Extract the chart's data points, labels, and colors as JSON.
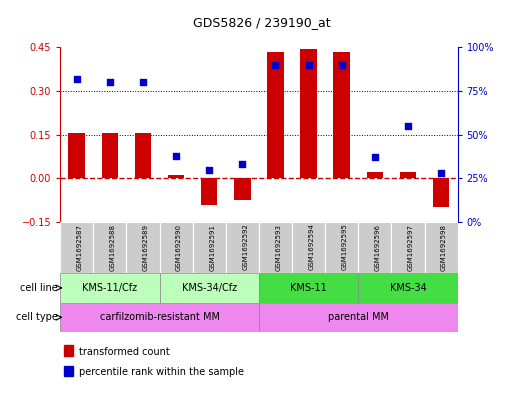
{
  "title": "GDS5826 / 239190_at",
  "samples": [
    "GSM1692587",
    "GSM1692588",
    "GSM1692589",
    "GSM1692590",
    "GSM1692591",
    "GSM1692592",
    "GSM1692593",
    "GSM1692594",
    "GSM1692595",
    "GSM1692596",
    "GSM1692597",
    "GSM1692598"
  ],
  "transformed_count": [
    0.155,
    0.155,
    0.155,
    0.01,
    -0.09,
    -0.075,
    0.435,
    0.445,
    0.435,
    0.02,
    0.02,
    -0.1
  ],
  "percentile_rank": [
    82,
    80,
    80,
    38,
    30,
    33,
    90,
    90,
    90,
    37,
    55,
    28
  ],
  "ylim_left": [
    -0.15,
    0.45
  ],
  "ylim_right": [
    0,
    100
  ],
  "yticks_left": [
    -0.15,
    0.0,
    0.15,
    0.3,
    0.45
  ],
  "yticks_right": [
    0,
    25,
    50,
    75,
    100
  ],
  "bar_color": "#cc0000",
  "dot_color": "#0000cc",
  "zero_line_color": "#cc0000",
  "cell_line_groups": [
    {
      "label": "KMS-11/Cfz",
      "start": 0,
      "end": 3,
      "color": "#bbffbb"
    },
    {
      "label": "KMS-34/Cfz",
      "start": 3,
      "end": 6,
      "color": "#bbffbb"
    },
    {
      "label": "KMS-11",
      "start": 6,
      "end": 9,
      "color": "#55ee55"
    },
    {
      "label": "KMS-34",
      "start": 9,
      "end": 12,
      "color": "#55ee55"
    }
  ],
  "cell_type_groups": [
    {
      "label": "carfilzomib-resistant MM",
      "start": 0,
      "end": 6,
      "color": "#ee88ee"
    },
    {
      "label": "parental MM",
      "start": 6,
      "end": 12,
      "color": "#ee88ee"
    }
  ],
  "legend_items": [
    {
      "label": "transformed count",
      "color": "#cc0000"
    },
    {
      "label": "percentile rank within the sample",
      "color": "#0000cc"
    }
  ],
  "tick_color_left": "#cc0000",
  "tick_color_right": "#0000cc",
  "sample_box_color": "#cccccc",
  "cell_line_light_color": "#bbffbb",
  "cell_line_dark_color": "#44dd44"
}
